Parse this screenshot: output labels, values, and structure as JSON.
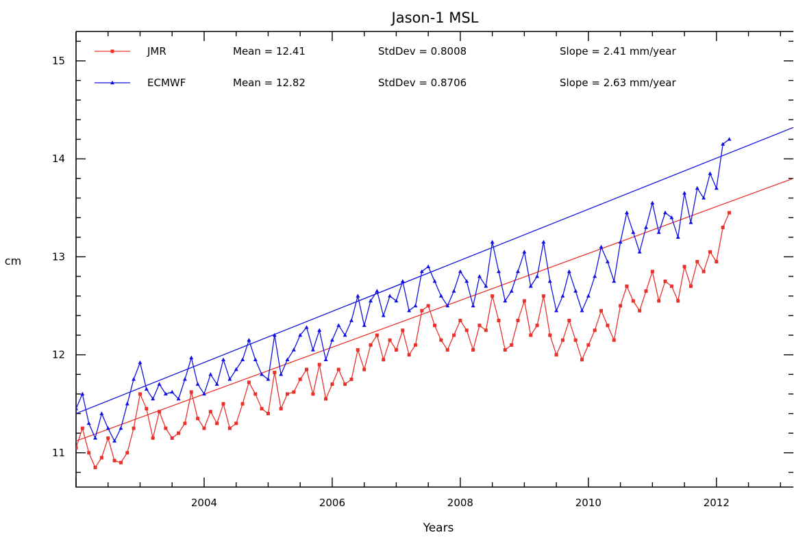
{
  "chart_data": {
    "type": "line",
    "title": "Jason-1 MSL",
    "xlabel": "Years",
    "ylabel": "cm",
    "xlim": [
      2002.0,
      2013.2
    ],
    "ylim": [
      10.65,
      15.3
    ],
    "x_ticks": [
      "2004",
      "2006",
      "2008",
      "2010",
      "2012"
    ],
    "y_ticks": [
      "11",
      "12",
      "13",
      "14",
      "15"
    ],
    "legend_position": "top-left",
    "grid": false,
    "series": [
      {
        "name": "JMR",
        "color": "#e8312a",
        "marker": "square",
        "stats": {
          "mean": "Mean = 12.41",
          "stddev": "StdDev = 0.8008",
          "slope": "Slope = 2.41 mm/year"
        },
        "trend": {
          "start": [
            2002.0,
            11.12
          ],
          "end": [
            2013.2,
            13.8
          ]
        },
        "points": [
          [
            2002.0,
            11.05
          ],
          [
            2002.1,
            11.25
          ],
          [
            2002.2,
            11.0
          ],
          [
            2002.3,
            10.85
          ],
          [
            2002.4,
            10.95
          ],
          [
            2002.5,
            11.15
          ],
          [
            2002.6,
            10.92
          ],
          [
            2002.7,
            10.9
          ],
          [
            2002.8,
            11.0
          ],
          [
            2002.9,
            11.25
          ],
          [
            2003.0,
            11.6
          ],
          [
            2003.1,
            11.45
          ],
          [
            2003.2,
            11.15
          ],
          [
            2003.3,
            11.42
          ],
          [
            2003.4,
            11.25
          ],
          [
            2003.5,
            11.15
          ],
          [
            2003.6,
            11.2
          ],
          [
            2003.7,
            11.3
          ],
          [
            2003.8,
            11.62
          ],
          [
            2003.9,
            11.35
          ],
          [
            2004.0,
            11.25
          ],
          [
            2004.1,
            11.42
          ],
          [
            2004.2,
            11.3
          ],
          [
            2004.3,
            11.5
          ],
          [
            2004.4,
            11.25
          ],
          [
            2004.5,
            11.3
          ],
          [
            2004.6,
            11.5
          ],
          [
            2004.7,
            11.72
          ],
          [
            2004.8,
            11.6
          ],
          [
            2004.9,
            11.45
          ],
          [
            2005.0,
            11.4
          ],
          [
            2005.1,
            11.82
          ],
          [
            2005.2,
            11.45
          ],
          [
            2005.3,
            11.6
          ],
          [
            2005.4,
            11.62
          ],
          [
            2005.5,
            11.75
          ],
          [
            2005.6,
            11.85
          ],
          [
            2005.7,
            11.6
          ],
          [
            2005.8,
            11.9
          ],
          [
            2005.9,
            11.55
          ],
          [
            2006.0,
            11.7
          ],
          [
            2006.1,
            11.85
          ],
          [
            2006.2,
            11.7
          ],
          [
            2006.3,
            11.75
          ],
          [
            2006.4,
            12.05
          ],
          [
            2006.5,
            11.85
          ],
          [
            2006.6,
            12.1
          ],
          [
            2006.7,
            12.2
          ],
          [
            2006.8,
            11.95
          ],
          [
            2006.9,
            12.15
          ],
          [
            2007.0,
            12.05
          ],
          [
            2007.1,
            12.25
          ],
          [
            2007.2,
            12.0
          ],
          [
            2007.3,
            12.1
          ],
          [
            2007.4,
            12.45
          ],
          [
            2007.5,
            12.5
          ],
          [
            2007.6,
            12.3
          ],
          [
            2007.7,
            12.15
          ],
          [
            2007.8,
            12.05
          ],
          [
            2007.9,
            12.2
          ],
          [
            2008.0,
            12.35
          ],
          [
            2008.1,
            12.25
          ],
          [
            2008.2,
            12.05
          ],
          [
            2008.3,
            12.3
          ],
          [
            2008.4,
            12.25
          ],
          [
            2008.5,
            12.6
          ],
          [
            2008.6,
            12.35
          ],
          [
            2008.7,
            12.05
          ],
          [
            2008.8,
            12.1
          ],
          [
            2008.9,
            12.35
          ],
          [
            2009.0,
            12.55
          ],
          [
            2009.1,
            12.2
          ],
          [
            2009.2,
            12.3
          ],
          [
            2009.3,
            12.6
          ],
          [
            2009.4,
            12.2
          ],
          [
            2009.5,
            12.0
          ],
          [
            2009.6,
            12.15
          ],
          [
            2009.7,
            12.35
          ],
          [
            2009.8,
            12.15
          ],
          [
            2009.9,
            11.95
          ],
          [
            2010.0,
            12.1
          ],
          [
            2010.1,
            12.25
          ],
          [
            2010.2,
            12.45
          ],
          [
            2010.3,
            12.3
          ],
          [
            2010.4,
            12.15
          ],
          [
            2010.5,
            12.5
          ],
          [
            2010.6,
            12.7
          ],
          [
            2010.7,
            12.55
          ],
          [
            2010.8,
            12.45
          ],
          [
            2010.9,
            12.65
          ],
          [
            2011.0,
            12.85
          ],
          [
            2011.1,
            12.55
          ],
          [
            2011.2,
            12.75
          ],
          [
            2011.3,
            12.7
          ],
          [
            2011.4,
            12.55
          ],
          [
            2011.5,
            12.9
          ],
          [
            2011.6,
            12.7
          ],
          [
            2011.7,
            12.95
          ],
          [
            2011.8,
            12.85
          ],
          [
            2011.9,
            13.05
          ],
          [
            2012.0,
            12.95
          ],
          [
            2012.1,
            13.3
          ],
          [
            2012.2,
            13.45
          ]
        ]
      },
      {
        "name": "ECMWF",
        "color": "#1010e0",
        "marker": "triangle",
        "stats": {
          "mean": "Mean = 12.82",
          "stddev": "StdDev = 0.8706",
          "slope": "Slope = 2.63 mm/year"
        },
        "trend": {
          "start": [
            2002.0,
            11.4
          ],
          "end": [
            2013.2,
            14.32
          ]
        },
        "points": [
          [
            2002.0,
            11.45
          ],
          [
            2002.1,
            11.6
          ],
          [
            2002.2,
            11.3
          ],
          [
            2002.3,
            11.15
          ],
          [
            2002.4,
            11.4
          ],
          [
            2002.5,
            11.25
          ],
          [
            2002.6,
            11.12
          ],
          [
            2002.7,
            11.25
          ],
          [
            2002.8,
            11.5
          ],
          [
            2002.9,
            11.75
          ],
          [
            2003.0,
            11.92
          ],
          [
            2003.1,
            11.65
          ],
          [
            2003.2,
            11.55
          ],
          [
            2003.3,
            11.7
          ],
          [
            2003.4,
            11.6
          ],
          [
            2003.5,
            11.62
          ],
          [
            2003.6,
            11.55
          ],
          [
            2003.7,
            11.75
          ],
          [
            2003.8,
            11.97
          ],
          [
            2003.9,
            11.7
          ],
          [
            2004.0,
            11.6
          ],
          [
            2004.1,
            11.8
          ],
          [
            2004.2,
            11.7
          ],
          [
            2004.3,
            11.95
          ],
          [
            2004.4,
            11.75
          ],
          [
            2004.5,
            11.85
          ],
          [
            2004.6,
            11.95
          ],
          [
            2004.7,
            12.15
          ],
          [
            2004.8,
            11.95
          ],
          [
            2004.9,
            11.8
          ],
          [
            2005.0,
            11.75
          ],
          [
            2005.1,
            12.2
          ],
          [
            2005.2,
            11.8
          ],
          [
            2005.3,
            11.95
          ],
          [
            2005.4,
            12.05
          ],
          [
            2005.5,
            12.2
          ],
          [
            2005.6,
            12.28
          ],
          [
            2005.7,
            12.05
          ],
          [
            2005.8,
            12.25
          ],
          [
            2005.9,
            11.95
          ],
          [
            2006.0,
            12.15
          ],
          [
            2006.1,
            12.3
          ],
          [
            2006.2,
            12.2
          ],
          [
            2006.3,
            12.35
          ],
          [
            2006.4,
            12.6
          ],
          [
            2006.5,
            12.3
          ],
          [
            2006.6,
            12.55
          ],
          [
            2006.7,
            12.65
          ],
          [
            2006.8,
            12.4
          ],
          [
            2006.9,
            12.6
          ],
          [
            2007.0,
            12.55
          ],
          [
            2007.1,
            12.75
          ],
          [
            2007.2,
            12.45
          ],
          [
            2007.3,
            12.5
          ],
          [
            2007.4,
            12.85
          ],
          [
            2007.5,
            12.9
          ],
          [
            2007.6,
            12.75
          ],
          [
            2007.7,
            12.6
          ],
          [
            2007.8,
            12.5
          ],
          [
            2007.9,
            12.65
          ],
          [
            2008.0,
            12.85
          ],
          [
            2008.1,
            12.75
          ],
          [
            2008.2,
            12.5
          ],
          [
            2008.3,
            12.8
          ],
          [
            2008.4,
            12.7
          ],
          [
            2008.5,
            13.15
          ],
          [
            2008.6,
            12.85
          ],
          [
            2008.7,
            12.55
          ],
          [
            2008.8,
            12.65
          ],
          [
            2008.9,
            12.85
          ],
          [
            2009.0,
            13.05
          ],
          [
            2009.1,
            12.7
          ],
          [
            2009.2,
            12.8
          ],
          [
            2009.3,
            13.15
          ],
          [
            2009.4,
            12.75
          ],
          [
            2009.5,
            12.45
          ],
          [
            2009.6,
            12.6
          ],
          [
            2009.7,
            12.85
          ],
          [
            2009.8,
            12.65
          ],
          [
            2009.9,
            12.45
          ],
          [
            2010.0,
            12.6
          ],
          [
            2010.1,
            12.8
          ],
          [
            2010.2,
            13.1
          ],
          [
            2010.3,
            12.95
          ],
          [
            2010.4,
            12.75
          ],
          [
            2010.5,
            13.15
          ],
          [
            2010.6,
            13.45
          ],
          [
            2010.7,
            13.25
          ],
          [
            2010.8,
            13.05
          ],
          [
            2010.9,
            13.3
          ],
          [
            2011.0,
            13.55
          ],
          [
            2011.1,
            13.25
          ],
          [
            2011.2,
            13.45
          ],
          [
            2011.3,
            13.4
          ],
          [
            2011.4,
            13.2
          ],
          [
            2011.5,
            13.65
          ],
          [
            2011.6,
            13.35
          ],
          [
            2011.7,
            13.7
          ],
          [
            2011.8,
            13.6
          ],
          [
            2011.9,
            13.85
          ],
          [
            2012.0,
            13.7
          ],
          [
            2012.1,
            14.15
          ],
          [
            2012.2,
            14.2
          ]
        ]
      }
    ]
  }
}
